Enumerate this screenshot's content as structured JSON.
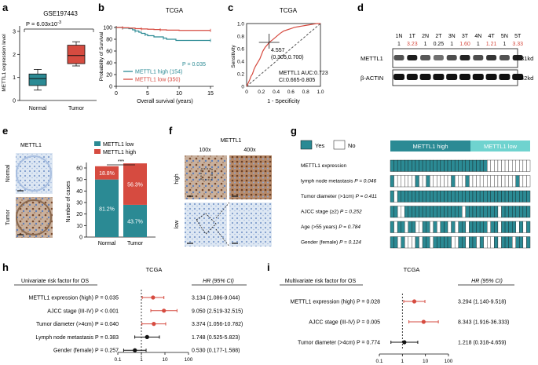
{
  "colors": {
    "teal": "#2b8a94",
    "light_teal": "#6fd3cf",
    "red": "#d64b40",
    "grid": "#999999",
    "text": "#111111",
    "tissue_brown": "#8b5a3c",
    "tissue_blue": "#b8cde6"
  },
  "panel_labels": {
    "a": "a",
    "b": "b",
    "c": "c",
    "d": "d",
    "e": "e",
    "f": "f",
    "g": "g",
    "h": "h",
    "i": "i"
  },
  "panel_a": {
    "title": "GSE197443",
    "pvalue": "P = 6.03x10",
    "pvalue_exp": "-3",
    "ylabel": "METTL1 expression level",
    "yticks": [
      "0",
      "1",
      "2",
      "3"
    ],
    "groups": [
      "Normal",
      "Tumor"
    ],
    "chart_data": {
      "type": "box",
      "categories": [
        "Normal",
        "Tumor"
      ],
      "boxes": [
        {
          "min": 0.45,
          "q1": 0.65,
          "median": 0.95,
          "q3": 1.15,
          "max": 1.35
        },
        {
          "min": 1.5,
          "q1": 1.6,
          "median": 1.95,
          "q3": 2.4,
          "max": 2.55
        }
      ],
      "ylim": [
        0,
        3
      ],
      "ylabel": "METTL1 expression level",
      "title": "GSE197443"
    }
  },
  "panel_b": {
    "title": "TCGA",
    "ylabel": "Probability of Survival",
    "xlabel": "Overall survival (years)",
    "pvalue": "P = 0.035",
    "yticks": [
      "0",
      "20",
      "40",
      "60",
      "80",
      "100"
    ],
    "xticks": [
      "0",
      "5",
      "10",
      "15"
    ],
    "legend": [
      {
        "label": "METTL1 high (154)"
      },
      {
        "label": "METTL1 low (350)"
      }
    ],
    "chart_data": {
      "type": "line",
      "title": "TCGA",
      "xlabel": "Overall survival (years)",
      "ylabel": "Probability of Survival",
      "xlim": [
        0,
        15
      ],
      "ylim": [
        0,
        100
      ],
      "series": [
        {
          "name": "METTL1 high (154)",
          "x": [
            0,
            1,
            2,
            2.6,
            3,
            3.6,
            4,
            4.6,
            5,
            6,
            7.5,
            8,
            9.5,
            15
          ],
          "y": [
            100,
            99,
            98,
            96,
            94,
            92,
            90,
            88,
            86,
            84,
            82,
            80,
            78,
            78
          ]
        },
        {
          "name": "METTL1 low (350)",
          "x": [
            0,
            1,
            2,
            3,
            4,
            5,
            6,
            7,
            8,
            10,
            15
          ],
          "y": [
            100,
            99.5,
            99,
            98,
            97.5,
            97,
            96.5,
            96,
            95.5,
            95,
            95
          ]
        }
      ]
    }
  },
  "panel_c": {
    "title": "TCGA",
    "ylabel": "Sensitivity",
    "xlabel": "1 - Specificity",
    "point_label": "4.557",
    "point_coords": "(0.305,0.700)",
    "auc": "METTL1 AUC:0.723",
    "ci": "CI:0.665-0.805",
    "ticks": [
      "0",
      "0.2",
      "0.4",
      "0.6",
      "0.8",
      "1.0"
    ],
    "chart_data": {
      "type": "line",
      "title": "TCGA",
      "xlabel": "1 - Specificity",
      "ylabel": "Sensitivity",
      "xlim": [
        0,
        1
      ],
      "ylim": [
        0,
        1
      ],
      "series": [
        {
          "name": "METTL1",
          "x": [
            0,
            0.02,
            0.04,
            0.06,
            0.08,
            0.1,
            0.12,
            0.15,
            0.18,
            0.2,
            0.22,
            0.25,
            0.28,
            0.3,
            0.305,
            0.35,
            0.4,
            0.45,
            0.5,
            0.55,
            0.6,
            0.65,
            0.7,
            0.75,
            0.8,
            0.85,
            0.9,
            0.95,
            1
          ],
          "y": [
            0,
            0.05,
            0.1,
            0.16,
            0.2,
            0.27,
            0.32,
            0.38,
            0.44,
            0.5,
            0.56,
            0.62,
            0.66,
            0.69,
            0.7,
            0.74,
            0.79,
            0.84,
            0.88,
            0.9,
            0.92,
            0.94,
            0.95,
            0.96,
            0.97,
            0.98,
            0.99,
            1,
            1
          ]
        },
        {
          "name": "reference",
          "x": [
            0,
            1
          ],
          "y": [
            0,
            1
          ]
        }
      ]
    }
  },
  "panel_d": {
    "lanes": [
      "1N",
      "1T",
      "2N",
      "2T",
      "3N",
      "3T",
      "4N",
      "4T",
      "5N",
      "5T"
    ],
    "ratios": [
      "1",
      "3.23",
      "1",
      "0.25",
      "1",
      "1.60",
      "1",
      "1.21",
      "1",
      "3.33"
    ],
    "ratio_red": [
      false,
      true,
      false,
      false,
      false,
      true,
      false,
      true,
      false,
      true
    ],
    "bands": [
      {
        "label": "METTL1",
        "size": "31kd"
      },
      {
        "label": "β-ACTIN",
        "size": "42kd"
      }
    ]
  },
  "panel_e": {
    "ihc_title": "METTL1",
    "ihc_rows": [
      "Normal",
      "Tumor"
    ],
    "ylabel": "Number of cases",
    "sig": "***",
    "yticks": [
      "0",
      "10",
      "20",
      "30",
      "40",
      "50",
      "60"
    ],
    "categories": [
      "Normal",
      "Tumor"
    ],
    "legend": [
      {
        "label": "METTL1 low"
      },
      {
        "label": "METTL1 high"
      }
    ],
    "chart_data": {
      "type": "bar",
      "stacked": true,
      "categories": [
        "Normal",
        "Tumor"
      ],
      "ylabel": "Number of cases",
      "ylim": [
        0,
        65
      ],
      "series": [
        {
          "name": "METTL1 low",
          "values": [
            50,
            28
          ],
          "labels": [
            "81.2%",
            "43.7%"
          ]
        },
        {
          "name": "METTL1 high",
          "values": [
            11.5,
            36
          ],
          "labels": [
            "18.8%",
            "56.3%"
          ]
        }
      ]
    }
  },
  "panel_f": {
    "title": "METTL1",
    "cols": [
      "100x",
      "400x"
    ],
    "rows": [
      "high",
      "low"
    ]
  },
  "panel_g": {
    "legend_yes": "Yes",
    "legend_no": "No",
    "group_high": "METTL1 high",
    "group_low": "METTL1 low",
    "rows": [
      {
        "label": "METTL1 expression",
        "p": ""
      },
      {
        "label": "lymph node metastasis ",
        "p": "P = 0.046"
      },
      {
        "label": "Tumor diameter (>1cm) ",
        "p": "P = 0.411"
      },
      {
        "label": "AJCC stage (≥2) ",
        "p": "P = 0.252"
      },
      {
        "label": "Age (>55 years) ",
        "p": "P = 0.784"
      },
      {
        "label": "Gender (female) ",
        "p": "P = 0.124"
      }
    ],
    "heatmap": [
      "111111111111111111111111111000000000000",
      "100000010010000001000100000000000001000",
      "101111111111111111111111111111111111111",
      "110011111111111111110111111111011111111",
      "101101100110101101011011111011011110101",
      "110100010110111110011011010001011101101"
    ]
  },
  "panel_h": {
    "title": "TCGA",
    "heading": "Univariate risk factor for OS",
    "hr_heading": "HR (95% CI)",
    "xticks": [
      "0.1",
      "1",
      "10",
      "100"
    ],
    "rows": [
      {
        "label": "METTL1 expression (high) P = 0.035",
        "hr": "3.134 (1.086-9.044)"
      },
      {
        "label": "AJCC stage (III-IV) P < 0.001",
        "hr": "9.050 (2.519-32.515)"
      },
      {
        "label": "Tumor diameter (>4cm) P = 0.040",
        "hr": "3.374 (1.056-10.782)"
      },
      {
        "label": "Lymph node metastasis P = 0.383",
        "hr": "1.748 (0.525-5.823)"
      },
      {
        "label": "Gender (female) P = 0.257",
        "hr": "0.530 (0.177-1.588)"
      }
    ],
    "chart_data": {
      "type": "scatter",
      "xscale": "log",
      "xlim": [
        0.1,
        100
      ],
      "reference": 1,
      "points": [
        {
          "hr": 3.134,
          "lo": 1.086,
          "hi": 9.044,
          "sig": true
        },
        {
          "hr": 9.05,
          "lo": 2.519,
          "hi": 32.515,
          "sig": true
        },
        {
          "hr": 3.374,
          "lo": 1.056,
          "hi": 10.782,
          "sig": true
        },
        {
          "hr": 1.748,
          "lo": 0.525,
          "hi": 5.823,
          "sig": false
        },
        {
          "hr": 0.53,
          "lo": 0.177,
          "hi": 1.588,
          "sig": false
        }
      ]
    }
  },
  "panel_i": {
    "title": "TCGA",
    "heading": "Multivariate risk factor for OS",
    "hr_heading": "HR (95% CI)",
    "xticks": [
      "0.1",
      "1",
      "10",
      "100"
    ],
    "rows": [
      {
        "label": "METTL1 expression (high) P = 0.028",
        "hr": "3.294 (1.140-9.518)"
      },
      {
        "label": "AJCC stage (III-IV) P = 0.005",
        "hr": "8.343 (1.916-36.333)"
      },
      {
        "label": "Tumor diameter (>4cm) P = 0.774",
        "hr": "1.218 (0.318-4.659)"
      }
    ],
    "chart_data": {
      "type": "scatter",
      "xscale": "log",
      "xlim": [
        0.1,
        100
      ],
      "reference": 1,
      "points": [
        {
          "hr": 3.294,
          "lo": 1.14,
          "hi": 9.518,
          "sig": true
        },
        {
          "hr": 8.343,
          "lo": 1.916,
          "hi": 36.333,
          "sig": true
        },
        {
          "hr": 1.218,
          "lo": 0.318,
          "hi": 4.659,
          "sig": false
        }
      ]
    }
  }
}
